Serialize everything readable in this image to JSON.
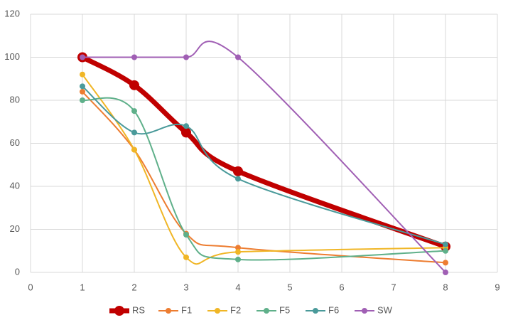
{
  "chart_data": {
    "type": "line",
    "x": [
      1,
      2,
      3,
      4,
      8
    ],
    "series": [
      {
        "name": "RS",
        "color": "#c00000",
        "values": [
          100,
          87,
          65,
          47,
          12
        ]
      },
      {
        "name": "F1",
        "color": "#ed7d31",
        "values": [
          84,
          57,
          18,
          11.5,
          4.5
        ]
      },
      {
        "name": "F2",
        "color": "#f0b626",
        "values": [
          92,
          57,
          7,
          9.5,
          11.5
        ]
      },
      {
        "name": "F5",
        "color": "#5fb08a",
        "values": [
          80,
          75,
          17.5,
          6,
          10
        ]
      },
      {
        "name": "F6",
        "color": "#4a9a9a",
        "values": [
          86.5,
          65,
          68,
          43.5,
          13
        ]
      },
      {
        "name": "SW",
        "color": "#a05fb4",
        "values": [
          100,
          100,
          100,
          100,
          0
        ]
      }
    ],
    "xlim": [
      0,
      9
    ],
    "xticks": [
      0,
      1,
      2,
      3,
      4,
      5,
      6,
      7,
      8,
      9
    ],
    "ylim": [
      0,
      120
    ],
    "yticks": [
      0,
      20,
      40,
      60,
      80,
      100,
      120
    ],
    "grid": true,
    "smooth": true,
    "legend": "bottom"
  }
}
